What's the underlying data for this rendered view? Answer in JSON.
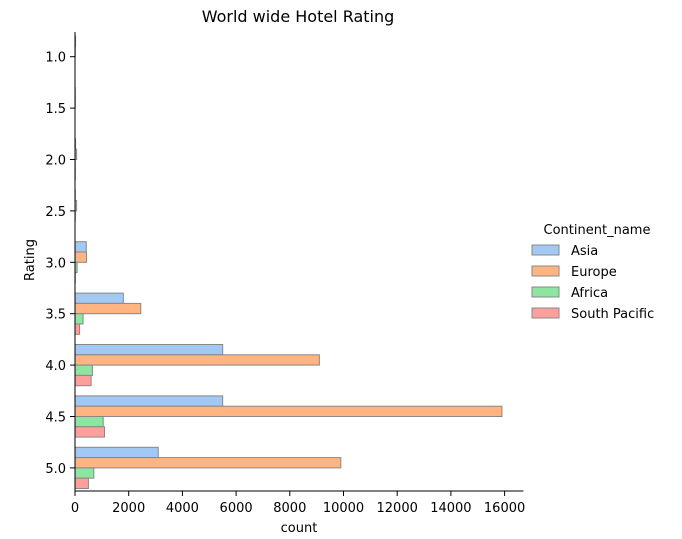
{
  "chart_data": {
    "type": "bar",
    "orientation": "horizontal",
    "title": "World wide Hotel Rating",
    "xlabel": "count",
    "ylabel": "Rating",
    "categories": [
      "1.0",
      "1.5",
      "2.0",
      "2.5",
      "3.0",
      "3.5",
      "4.0",
      "4.5",
      "5.0"
    ],
    "xlim": [
      0,
      16700
    ],
    "xticks": [
      0,
      2000,
      4000,
      6000,
      8000,
      10000,
      12000,
      14000,
      16000
    ],
    "grid": false,
    "legend": {
      "title": "Continent_name",
      "placement": "right"
    },
    "series": [
      {
        "name": "Asia",
        "color": "#a1c9f4",
        "values": [
          20,
          10,
          20,
          10,
          420,
          1800,
          5500,
          5500,
          3100
        ]
      },
      {
        "name": "Europe",
        "color": "#ffb482",
        "values": [
          10,
          10,
          60,
          60,
          430,
          2450,
          9100,
          15900,
          9900
        ]
      },
      {
        "name": "Africa",
        "color": "#8de5a1",
        "values": [
          0,
          0,
          10,
          10,
          80,
          300,
          650,
          1050,
          700
        ]
      },
      {
        "name": "South Pacific",
        "color": "#ff9f9b",
        "values": [
          0,
          0,
          10,
          0,
          10,
          170,
          600,
          1100,
          500
        ]
      }
    ]
  }
}
